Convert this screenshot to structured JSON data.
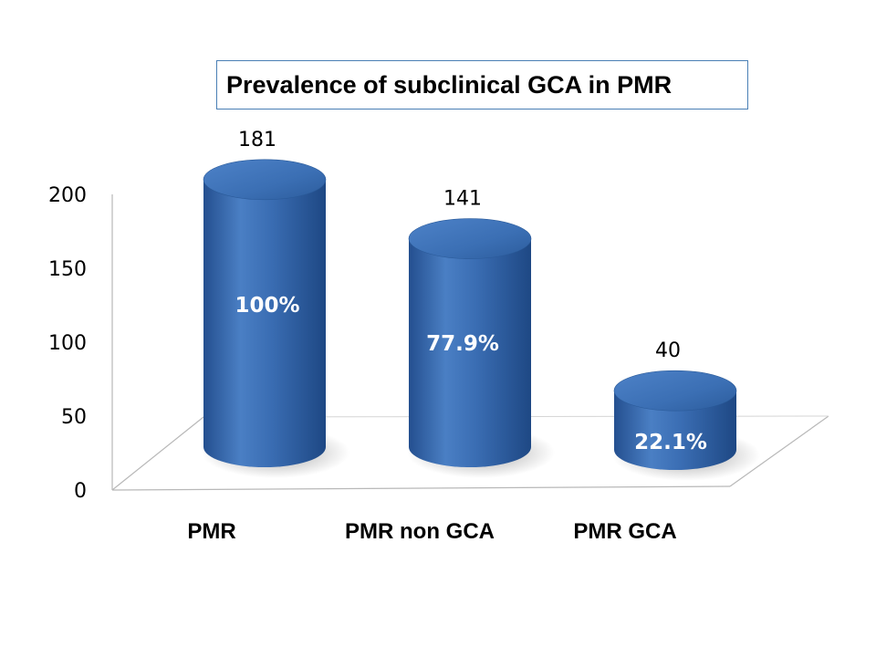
{
  "chart_data": {
    "type": "bar",
    "title": "Prevalence of subclinical GCA in PMR",
    "categories": [
      "PMR",
      "PMR non GCA",
      "PMR GCA"
    ],
    "values": [
      181,
      141,
      40
    ],
    "data_labels": [
      "181",
      "141",
      "40"
    ],
    "percent_labels": [
      "100%",
      "77.9%",
      "22.1%"
    ],
    "ylim": [
      0,
      200
    ],
    "yticks": [
      "0",
      "50",
      "100",
      "150",
      "200"
    ],
    "xlabel": "",
    "ylabel": "",
    "grid": false,
    "legend": "none",
    "style": "3d-cylinder",
    "colors": {
      "bar_main": "#3565a8",
      "bar_light": "#6c9bd6",
      "bar_dark": "#1f4a86",
      "floor_line": "#b8b8b8"
    }
  }
}
